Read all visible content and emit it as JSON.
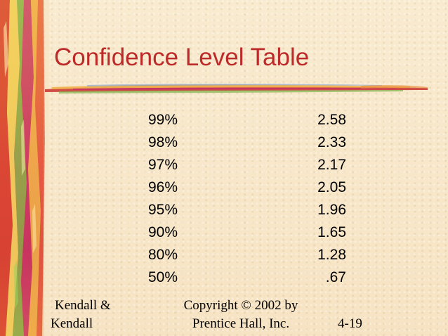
{
  "slide": {
    "title": "Confidence Level Table",
    "title_color": "#bd2a2a"
  },
  "table": {
    "rows": [
      {
        "level": "99%",
        "z": "2.58"
      },
      {
        "level": "98%",
        "z": "2.33"
      },
      {
        "level": "97%",
        "z": "2.17"
      },
      {
        "level": "96%",
        "z": "2.05"
      },
      {
        "level": "95%",
        "z": "1.96"
      },
      {
        "level": "90%",
        "z": "1.65"
      },
      {
        "level": "80%",
        "z": "1.28"
      },
      {
        "level": "50%",
        "z": ".67"
      }
    ]
  },
  "footer": {
    "author_line1": "Kendall &",
    "author_line2": "Kendall",
    "copyright_line1": "Copyright © 2002 by",
    "copyright_line2": "Prentice Hall, Inc.",
    "slide_number": "4-19"
  }
}
